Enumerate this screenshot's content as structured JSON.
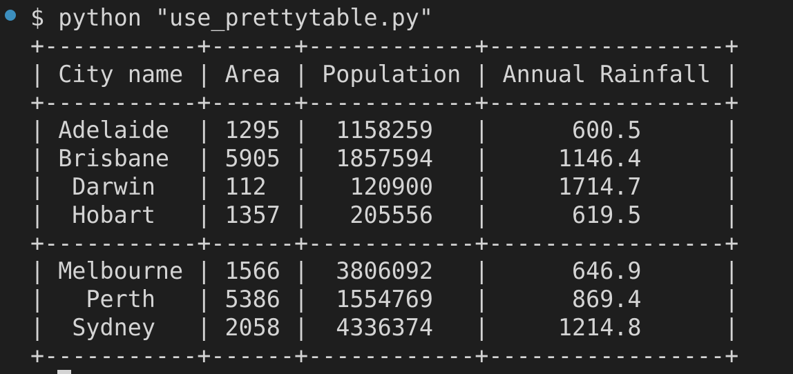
{
  "terminal": {
    "prompt_symbol": "$",
    "command": "python \"use_prettytable.py\""
  },
  "table": {
    "headers": [
      "City name",
      "Area",
      "Population",
      "Annual Rainfall"
    ],
    "groups": [
      [
        [
          "Adelaide",
          "1295",
          "1158259",
          "600.5"
        ],
        [
          "Brisbane",
          "5905",
          "1857594",
          "1146.4"
        ],
        [
          "Darwin",
          "112",
          "120900",
          "1714.7"
        ],
        [
          "Hobart",
          "1357",
          "205556",
          "619.5"
        ]
      ],
      [
        [
          "Melbourne",
          "1566",
          "3806092",
          "646.9"
        ],
        [
          "Perth",
          "5386",
          "1554769",
          "869.4"
        ],
        [
          "Sydney",
          "2058",
          "4336374",
          "1214.8"
        ]
      ]
    ]
  },
  "icons": {
    "status_dot": "status-dot-icon",
    "cursor": "cursor-block-icon"
  },
  "colors": {
    "background": "#1e1e1e",
    "text": "#d4d4d4",
    "status_dot": "#3c8fbf"
  }
}
